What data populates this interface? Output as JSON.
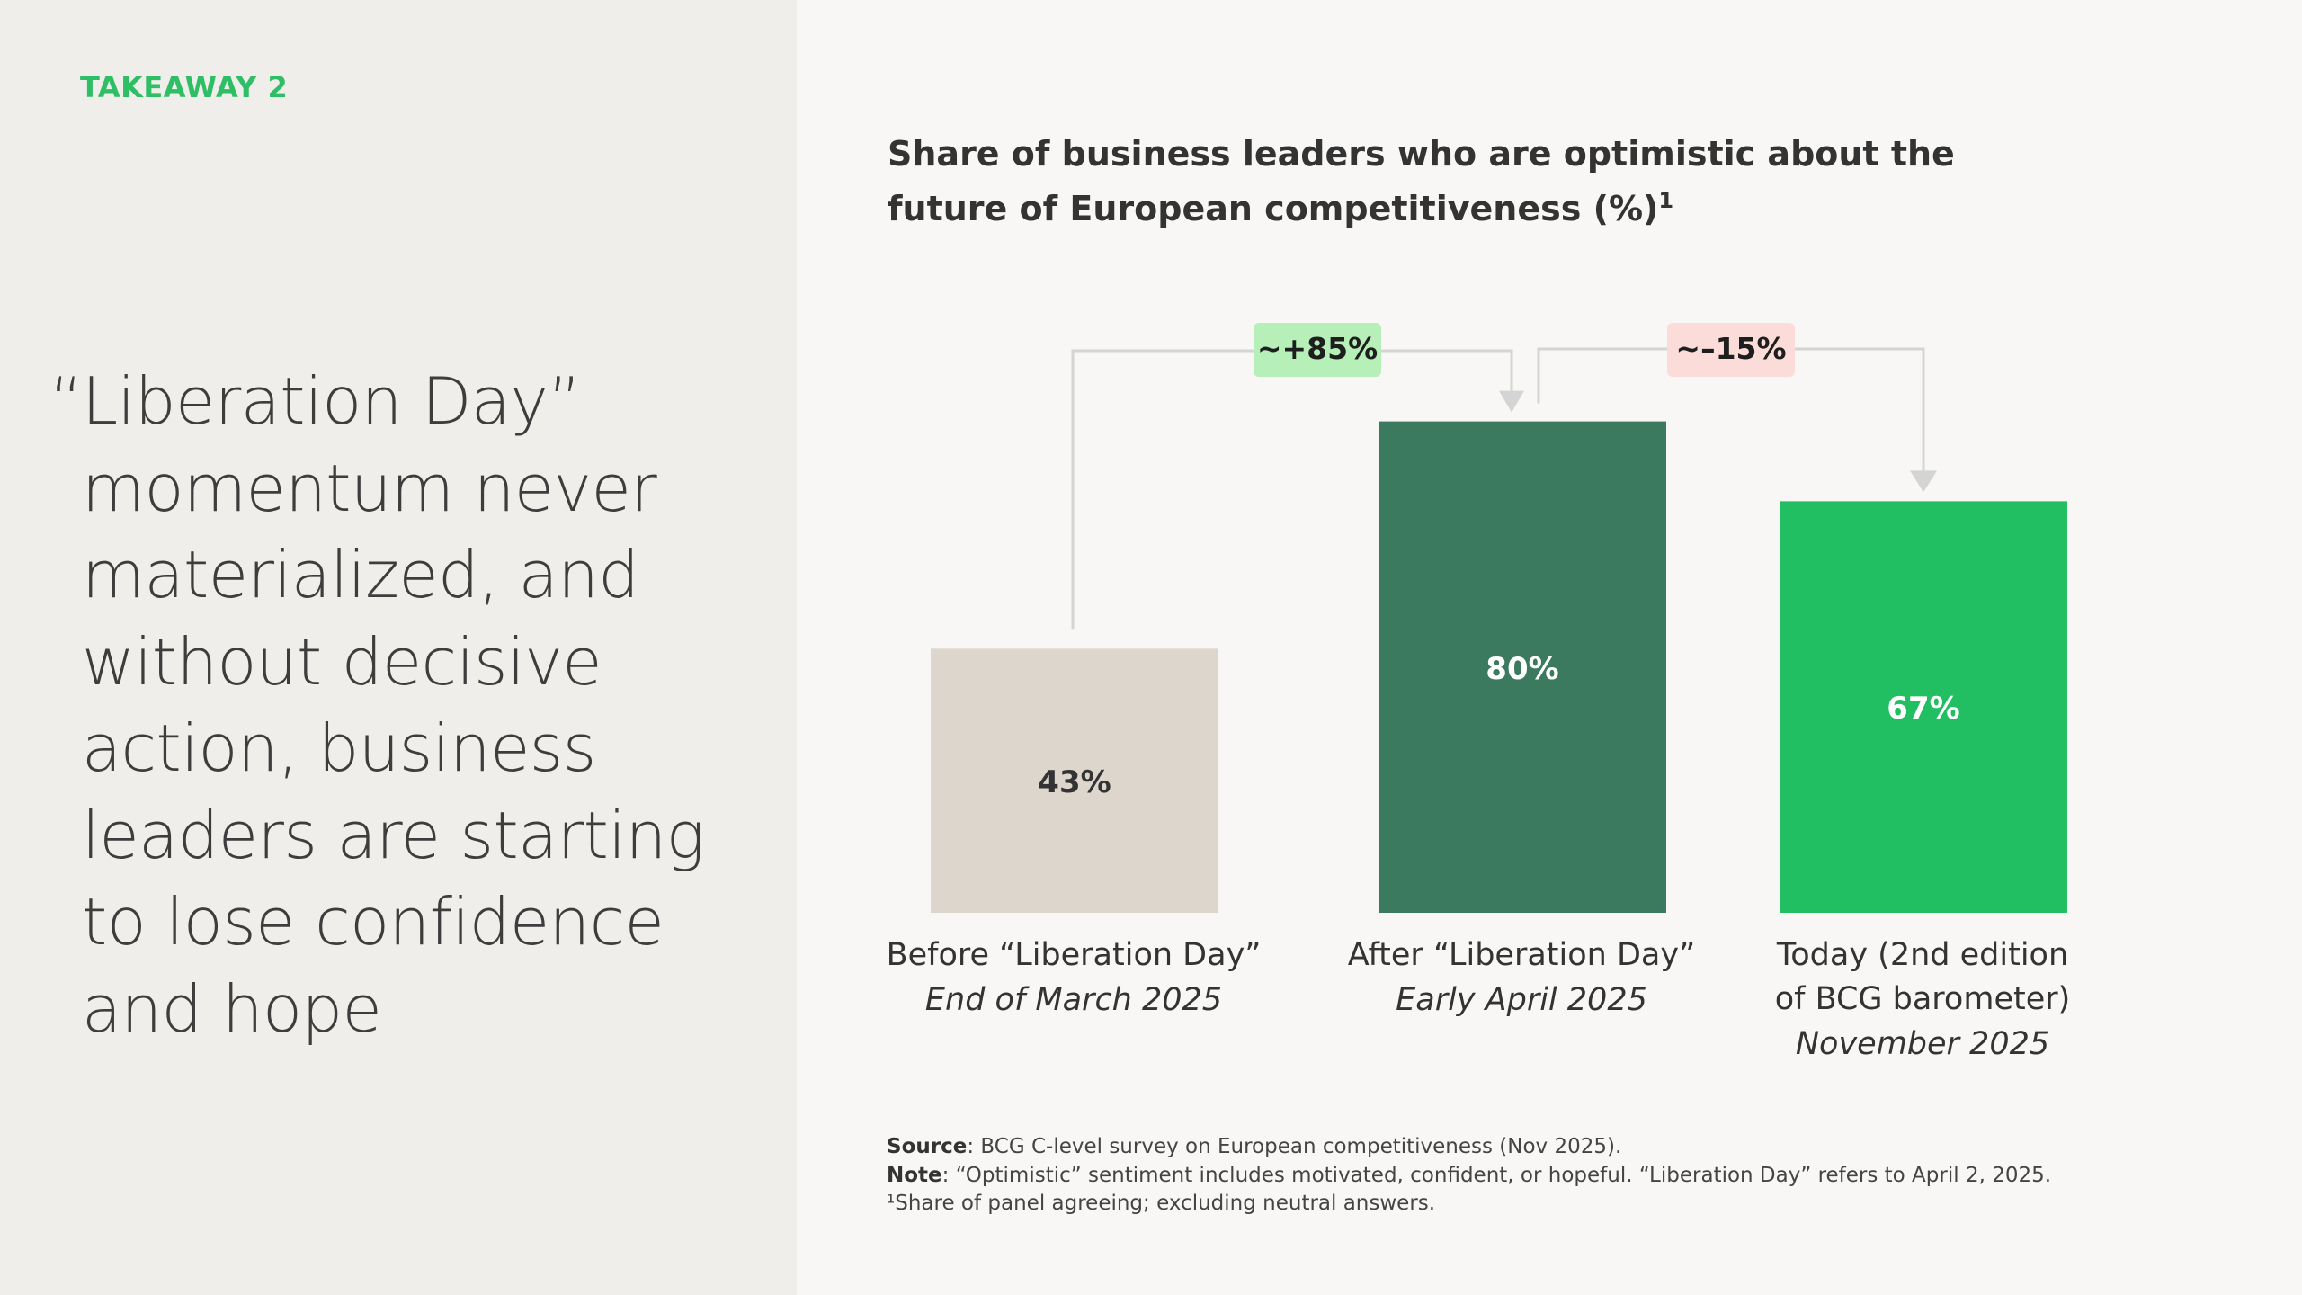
{
  "takeaway": {
    "label": "TAKEAWAY 2"
  },
  "quote": {
    "open_mark": "“",
    "lines": [
      "Liberation Day”",
      "momentum never",
      "materialized, and",
      "without decisive",
      "action, business",
      "leaders are starting",
      "to lose confidence",
      "and hope"
    ]
  },
  "chart_title": {
    "line1": "Share of business leaders who are optimistic about the",
    "line2": "future of European competitiveness (%)",
    "footnote_marker": "1"
  },
  "chart_data": {
    "type": "bar",
    "title": "Share of business leaders who are optimistic about the future of European competitiveness (%)",
    "ylim": [
      0,
      100
    ],
    "categories": [
      {
        "name_lines": [
          "Before “Liberation Day”"
        ],
        "date": "End of March 2025"
      },
      {
        "name_lines": [
          "After “Liberation Day”"
        ],
        "date": "Early April 2025"
      },
      {
        "name_lines": [
          "Today (2nd edition",
          "of BCG barometer)"
        ],
        "date": "November 2025"
      }
    ],
    "values": [
      43,
      80,
      67
    ],
    "value_labels": [
      "43%",
      "80%",
      "67%"
    ],
    "bar_colors": [
      "#ddd6cd",
      "#3b7a5e",
      "#22bf62"
    ],
    "label_colors": [
      "#333333",
      "#ffffff",
      "#ffffff"
    ],
    "changes": [
      {
        "from": 0,
        "to": 1,
        "label": "~+85%",
        "bg": "#b6f0b8",
        "color": "#1e1e1e"
      },
      {
        "from": 1,
        "to": 2,
        "label": "~–15%",
        "bg": "#fcdcd8",
        "color": "#1e1e1e"
      }
    ],
    "connector_color": "#d4d4d4"
  },
  "footnotes": {
    "source_label": "Source",
    "source_text": ": BCG C-level survey on European competitiveness (Nov 2025).",
    "note_label": "Note",
    "note_text": ": “Optimistic” sentiment includes motivated, confident, or hopeful. “Liberation Day” refers to April 2, 2025.",
    "footnote_marker": "¹",
    "footnote_text": "Share of panel agreeing; excluding neutral answers."
  }
}
